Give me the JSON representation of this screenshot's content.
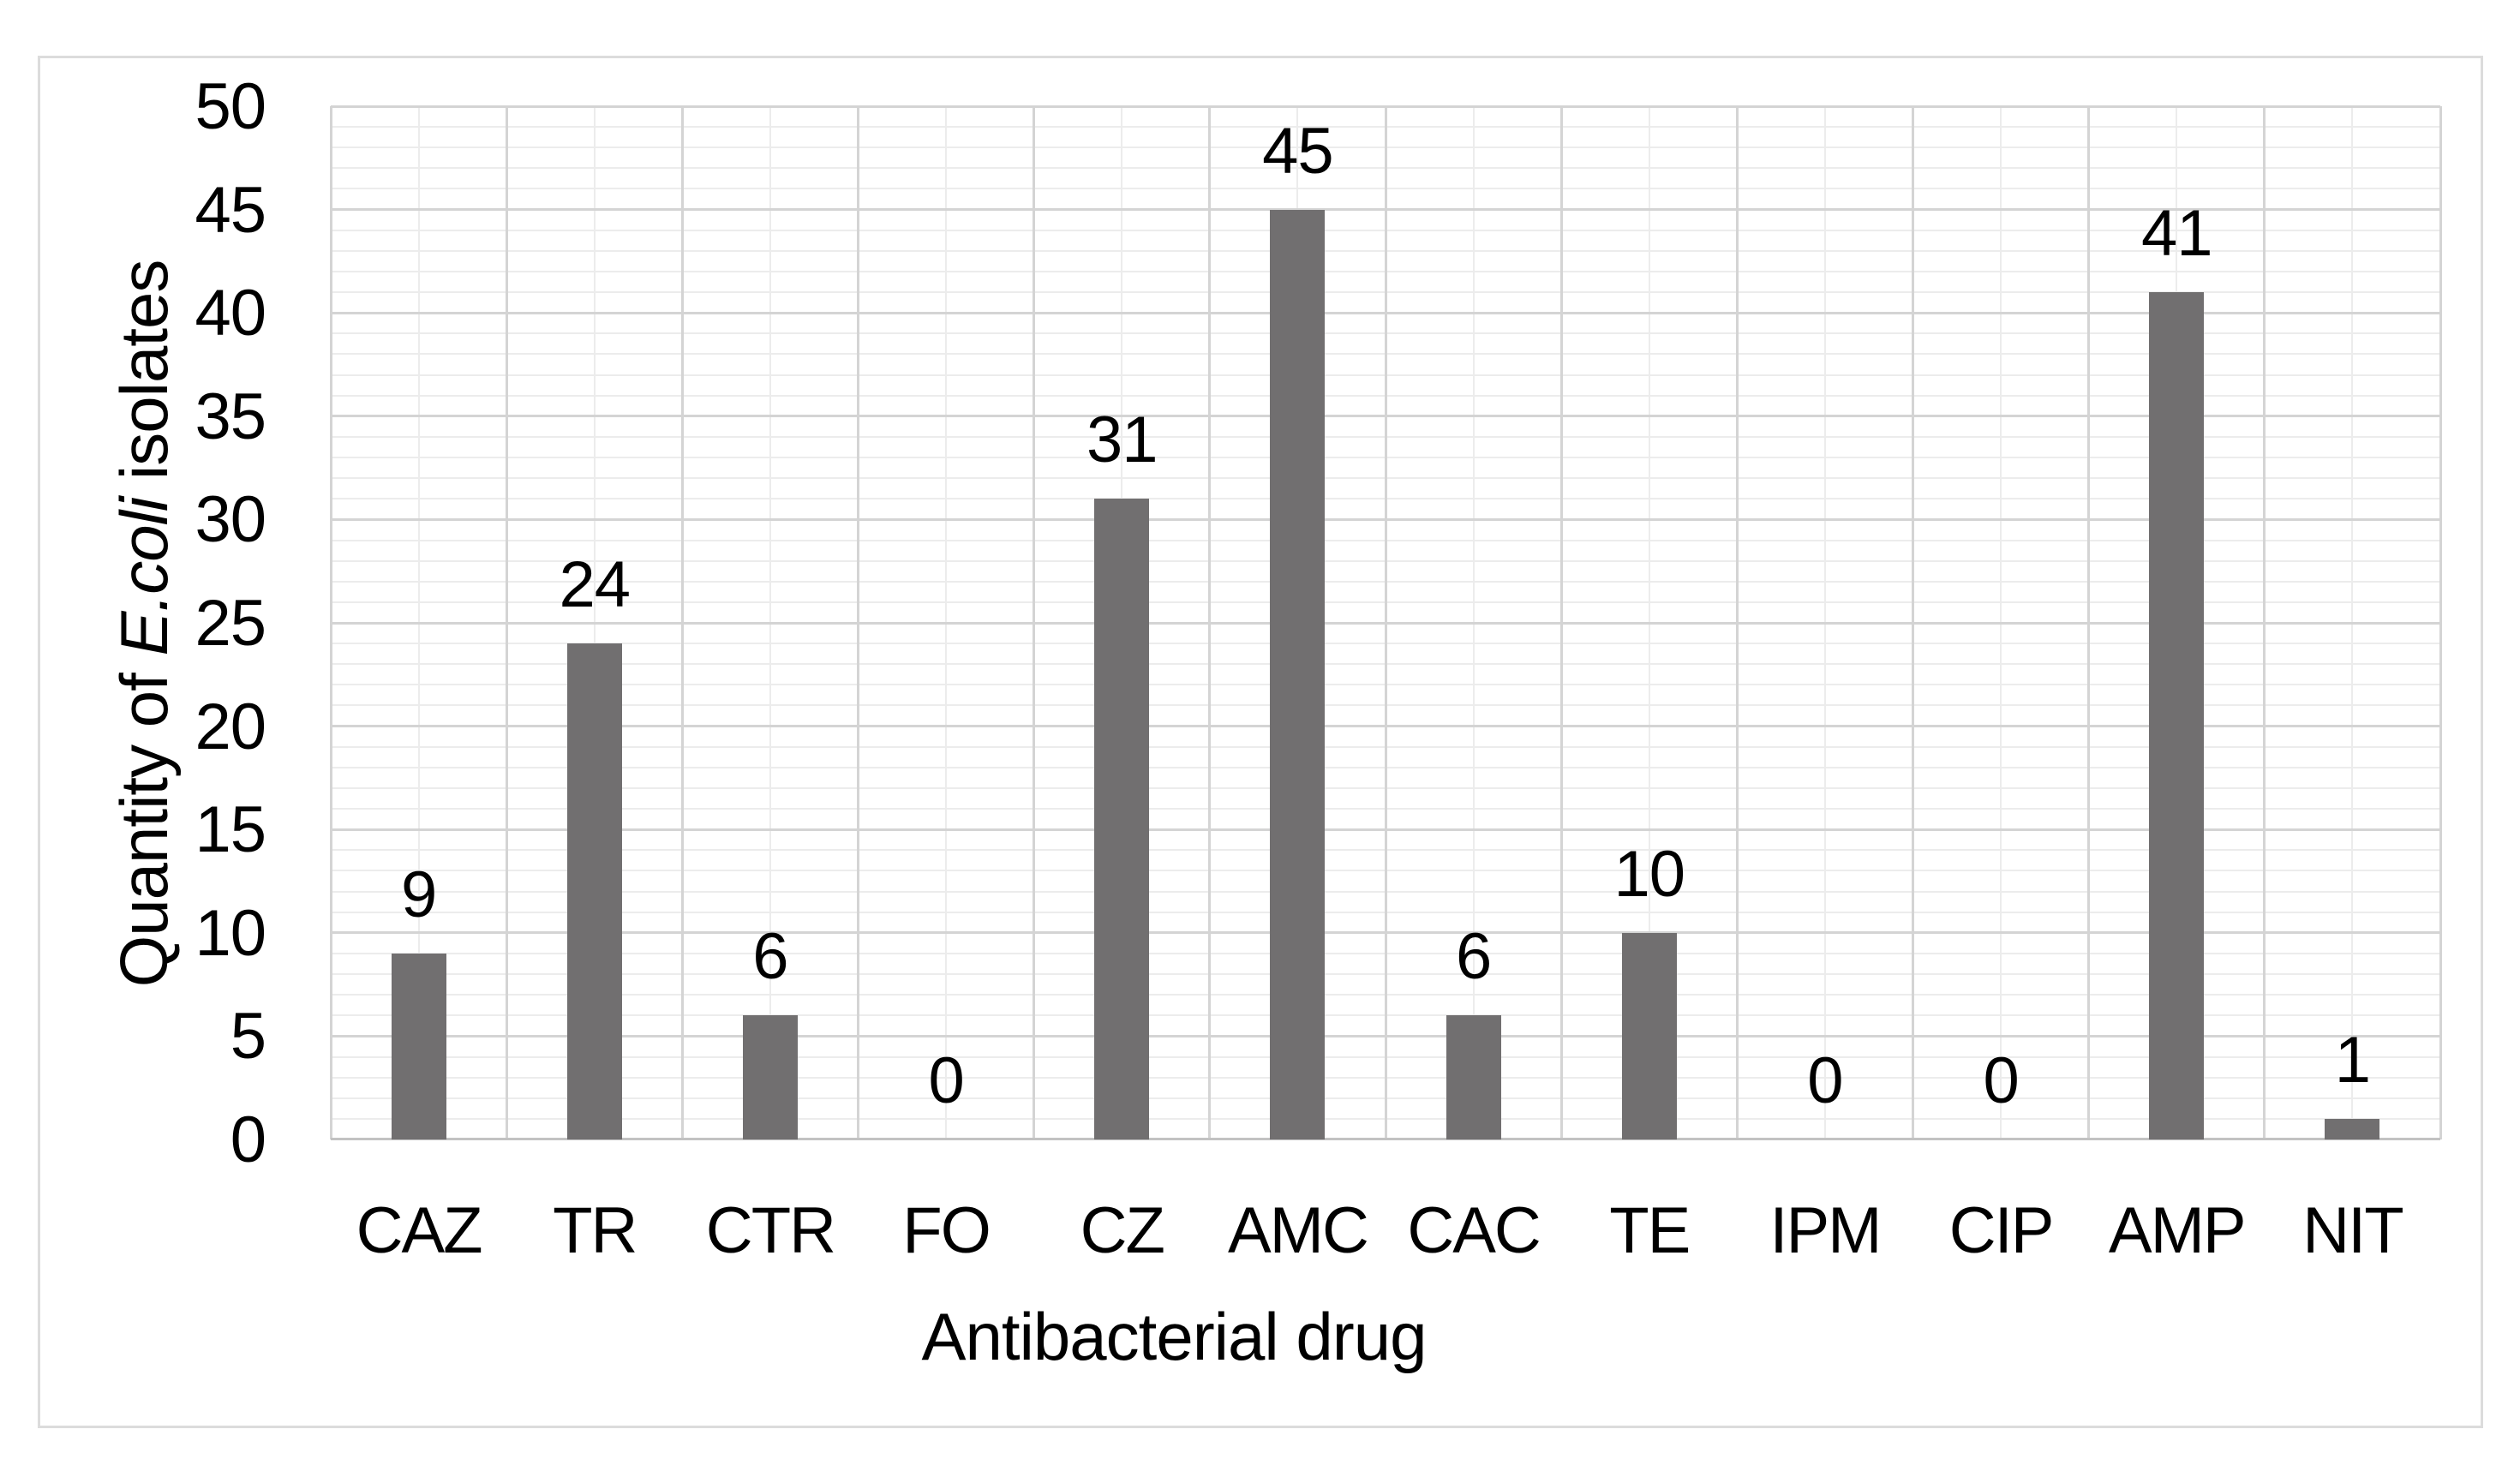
{
  "chart_data": {
    "type": "bar",
    "title": "",
    "categories": [
      "CAZ",
      "TR",
      "CTR",
      "FO",
      "CZ",
      "AMC",
      "CAC",
      "TE",
      "IPM",
      "CIP",
      "AMP",
      "NIT"
    ],
    "values": [
      9,
      24,
      6,
      0,
      31,
      45,
      6,
      10,
      0,
      0,
      41,
      1
    ],
    "data_labels": [
      "9",
      "24",
      "6",
      "0",
      "31",
      "45",
      "6",
      "10",
      "0",
      "0",
      "41",
      "1"
    ],
    "xlabel": "Antibacterial drug",
    "ylabel": "Quantity of E.coli isolates",
    "ylabel_parts": {
      "prefix": "Quantity of ",
      "italic": "E.coli",
      "suffix": " isolates"
    },
    "ylim": [
      0,
      50
    ],
    "y_ticks": [
      0,
      5,
      10,
      15,
      20,
      25,
      30,
      35,
      40,
      45,
      50
    ],
    "y_major_step": 5,
    "y_minor_step": 1,
    "grid": "major and minor horizontal and vertical gridlines",
    "legend": "none",
    "colors": {
      "bar": "#716f70",
      "grid_major": "#d4d4d4",
      "grid_minor": "#ececec",
      "axis_line": "#c2c2c2",
      "frame_border": "#dcdcdc",
      "text": "#000000"
    }
  }
}
